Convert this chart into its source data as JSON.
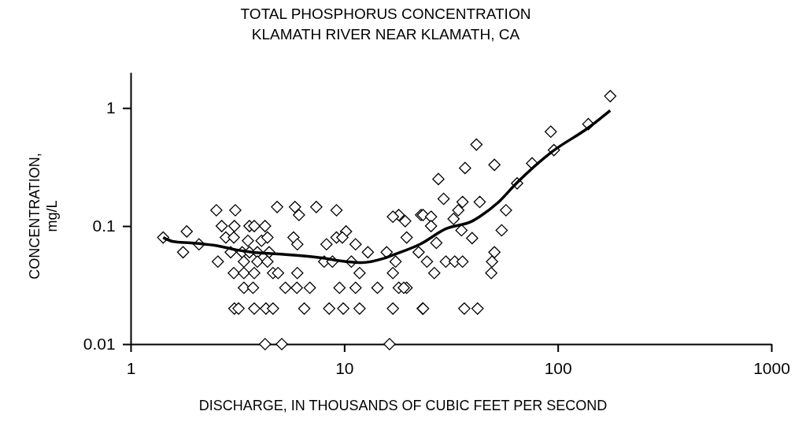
{
  "chart_data": {
    "type": "scatter",
    "title": "TOTAL PHOSPHORUS CONCENTRATION",
    "subtitle": "KLAMATH RIVER NEAR KLAMATH, CA",
    "xlabel": "DISCHARGE, IN THOUSANDS OF CUBIC FEET PER SECOND",
    "ylabel": "CONCENTRATION, mg/L",
    "log": "xy",
    "xlim": [
      1,
      1000
    ],
    "xticks": [
      1,
      10,
      100,
      1000
    ],
    "ylim": [
      0.01,
      2
    ],
    "yticks": [
      0.01,
      0.1,
      1
    ],
    "marker": "diamond",
    "series": [
      {
        "color": "#000000",
        "x": [
          1.42,
          1.83,
          1.76,
          2.09,
          2.52,
          3.09,
          4.85,
          2.56,
          2.67,
          3.06,
          3.6,
          3.79,
          4.26,
          2.79,
          3.04,
          3.54,
          4.1,
          4.37,
          2.94,
          3.33,
          3.6,
          3.92,
          4.45,
          3.04,
          3.39,
          3.79,
          4.64,
          3.39,
          3.92,
          4.37,
          3.39,
          3.74,
          3.06,
          3.2,
          3.79,
          4.3,
          4.64,
          4.26,
          5.1,
          16.3,
          5.88,
          6.14,
          7.4,
          9.2,
          5.79,
          6.03,
          8.26,
          9.2,
          10.2,
          9.8,
          11.3,
          8.05,
          8.8,
          10.8,
          12.9,
          15.8,
          17.4,
          11.8,
          16.9,
          22.3,
          4.9,
          6.03,
          5.3,
          6.0,
          6.9,
          9.5,
          11.3,
          14.3,
          18.0,
          19.6,
          6.5,
          8.5,
          9.9,
          11.8,
          16.9,
          23.3,
          18.0,
          19.3,
          16.9,
          19.6,
          22.9,
          41.6,
          36.8,
          50.5,
          27.6,
          29.2,
          35.8,
          43.1,
          57.2,
          34.2,
          23.4,
          25.5,
          25.5,
          32.5,
          27.0,
          35.4,
          39.7,
          54.6,
          24.4,
          29.9,
          32.9,
          35.8,
          26.4,
          50.5,
          49.2,
          48.8,
          19.0,
          23.4,
          36.5,
          42.1,
          64.5,
          75.8,
          95.9,
          92.7,
          139,
          176
        ],
        "values": [
          0.08,
          0.09,
          0.06,
          0.07,
          0.136,
          0.136,
          0.145,
          0.05,
          0.1,
          0.1,
          0.1,
          0.1,
          0.1,
          0.08,
          0.08,
          0.075,
          0.075,
          0.08,
          0.06,
          0.06,
          0.06,
          0.06,
          0.06,
          0.04,
          0.04,
          0.04,
          0.04,
          0.05,
          0.05,
          0.05,
          0.03,
          0.03,
          0.02,
          0.02,
          0.02,
          0.02,
          0.02,
          0.01,
          0.01,
          0.01,
          0.145,
          0.124,
          0.145,
          0.136,
          0.08,
          0.07,
          0.07,
          0.08,
          0.09,
          0.08,
          0.07,
          0.05,
          0.05,
          0.05,
          0.06,
          0.06,
          0.05,
          0.04,
          0.04,
          0.06,
          0.04,
          0.04,
          0.03,
          0.03,
          0.03,
          0.03,
          0.03,
          0.03,
          0.03,
          0.03,
          0.02,
          0.02,
          0.02,
          0.02,
          0.02,
          0.02,
          0.124,
          0.11,
          0.12,
          0.08,
          0.124,
          0.49,
          0.31,
          0.33,
          0.25,
          0.17,
          0.16,
          0.16,
          0.136,
          0.136,
          0.124,
          0.12,
          0.1,
          0.115,
          0.072,
          0.092,
          0.079,
          0.092,
          0.05,
          0.05,
          0.05,
          0.05,
          0.04,
          0.06,
          0.05,
          0.04,
          0.03,
          0.02,
          0.02,
          0.02,
          0.23,
          0.34,
          0.44,
          0.63,
          0.73,
          1.26
        ]
      },
      {
        "type": "line",
        "marker": "none",
        "color": "#000000",
        "x": [
          1.42,
          1.58,
          1.92,
          2.56,
          3.1,
          3.69,
          4.88,
          7.7,
          10.2,
          12.1,
          15.2,
          17,
          22.6,
          30,
          39.7,
          43,
          52.5,
          64,
          93,
          139,
          176
        ],
        "values": [
          0.08,
          0.074,
          0.072,
          0.068,
          0.063,
          0.06,
          0.058,
          0.054,
          0.05,
          0.049,
          0.053,
          0.057,
          0.07,
          0.095,
          0.11,
          0.12,
          0.158,
          0.23,
          0.42,
          0.68,
          0.95
        ]
      }
    ]
  }
}
